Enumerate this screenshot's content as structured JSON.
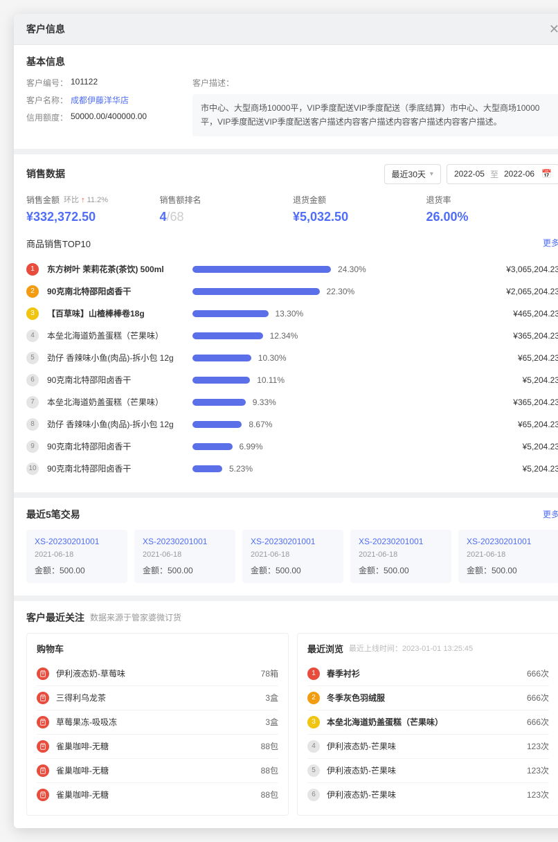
{
  "modal": {
    "title": "客户信息"
  },
  "basic": {
    "title": "基本信息",
    "id_label": "客户编号：",
    "id": "101122",
    "name_label": "客户名称：",
    "name": "成都伊藤洋华店",
    "credit_label": "信用额度：",
    "credit": "50000.00/400000.00",
    "desc_label": "客户描述：",
    "desc": "市中心、大型商场10000平，VIP季度配送VIP季度配送（季底结算）市中心、大型商场10000平，VIP季度配送VIP季度配送客户描述内容客户描述内容客户描述内容客户描述。"
  },
  "sales": {
    "title": "销售数据",
    "period_label": "最近30天",
    "date_start": "2022-05",
    "date_sep": "至",
    "date_end": "2022-06",
    "metrics": [
      {
        "label": "销售金额",
        "delta_label": "环比",
        "delta_arrow": "↑",
        "delta_val": "11.2%",
        "value": "¥332,372.50",
        "has_delta": true
      },
      {
        "label": "销售额排名",
        "value_num": "4",
        "value_denom": "/68",
        "is_rank": true
      },
      {
        "label": "退货金额",
        "value": "¥5,032.50"
      },
      {
        "label": "退货率",
        "value": "26.00%"
      }
    ],
    "top10_title": "商品销售TOP10",
    "more": "更多",
    "bar_color": "#5b6fe8",
    "rank_colors": [
      "#e74c3c",
      "#f39c12",
      "#f1c40f"
    ],
    "max_pct": 24.3,
    "items": [
      {
        "rank": 1,
        "name": "东方树叶 茉莉花茶(茶饮) 500ml",
        "pct": 24.3,
        "pct_label": "24.30%",
        "amount": "¥3,065,204.23",
        "bold": true
      },
      {
        "rank": 2,
        "name": "90克南北特邵阳卤香干",
        "pct": 22.3,
        "pct_label": "22.30%",
        "amount": "¥2,065,204.23",
        "bold": true
      },
      {
        "rank": 3,
        "name": "【百草味】山楂棒棒卷18g",
        "pct": 13.3,
        "pct_label": "13.30%",
        "amount": "¥465,204.23",
        "bold": true
      },
      {
        "rank": 4,
        "name": "本垒北海道奶盖蛋糕（芒果味）",
        "pct": 12.34,
        "pct_label": "12.34%",
        "amount": "¥365,204.23"
      },
      {
        "rank": 5,
        "name": "劲仔 香辣味小鱼(肉品)-拆小包 12g",
        "pct": 10.3,
        "pct_label": "10.30%",
        "amount": "¥65,204.23"
      },
      {
        "rank": 6,
        "name": "90克南北特邵阳卤香干",
        "pct": 10.11,
        "pct_label": "10.11%",
        "amount": "¥5,204.23"
      },
      {
        "rank": 7,
        "name": "本垒北海道奶盖蛋糕（芒果味）",
        "pct": 9.33,
        "pct_label": "9.33%",
        "amount": "¥365,204.23"
      },
      {
        "rank": 8,
        "name": "劲仔 香辣味小鱼(肉品)-拆小包 12g",
        "pct": 8.67,
        "pct_label": "8.67%",
        "amount": "¥65,204.23"
      },
      {
        "rank": 9,
        "name": "90克南北特邵阳卤香干",
        "pct": 6.99,
        "pct_label": "6.99%",
        "amount": "¥5,204.23"
      },
      {
        "rank": 10,
        "name": "90克南北特邵阳卤香干",
        "pct": 5.23,
        "pct_label": "5.23%",
        "amount": "¥5,204.23"
      }
    ]
  },
  "tx": {
    "title": "最近5笔交易",
    "more": "更多",
    "amt_label": "金额：",
    "items": [
      {
        "id": "XS-20230201001",
        "date": "2021-06-18",
        "amount": "500.00"
      },
      {
        "id": "XS-20230201001",
        "date": "2021-06-18",
        "amount": "500.00"
      },
      {
        "id": "XS-20230201001",
        "date": "2021-06-18",
        "amount": "500.00"
      },
      {
        "id": "XS-20230201001",
        "date": "2021-06-18",
        "amount": "500.00"
      },
      {
        "id": "XS-20230201001",
        "date": "2021-06-18",
        "amount": "500.00"
      }
    ]
  },
  "attn": {
    "title": "客户最近关注",
    "sub": "数据来源于管家婆微订货",
    "cart": {
      "title": "购物车",
      "icon_color": "#e74c3c",
      "items": [
        {
          "name": "伊利液态奶-草莓味",
          "qty": "78箱"
        },
        {
          "name": "三得利乌龙茶",
          "qty": "3盒"
        },
        {
          "name": "草莓果冻-吸吸冻",
          "qty": "3盒"
        },
        {
          "name": "雀巢咖啡-无糖",
          "qty": "88包"
        },
        {
          "name": "雀巢咖啡-无糖",
          "qty": "88包"
        },
        {
          "name": "雀巢咖啡-无糖",
          "qty": "88包"
        }
      ]
    },
    "browse": {
      "title": "最近浏览",
      "sub_label": "最近上线时间：",
      "sub_time": "2023-01-01 13:25:45",
      "rank_colors": [
        "#e74c3c",
        "#f39c12",
        "#f1c40f"
      ],
      "items": [
        {
          "rank": 1,
          "name": "春季衬衫",
          "qty": "666次"
        },
        {
          "rank": 2,
          "name": "冬季灰色羽绒服",
          "qty": "666次"
        },
        {
          "rank": 3,
          "name": "本垒北海道奶盖蛋糕（芒果味）",
          "qty": "666次"
        },
        {
          "rank": 4,
          "name": "伊利液态奶-芒果味",
          "qty": "123次"
        },
        {
          "rank": 5,
          "name": "伊利液态奶-芒果味",
          "qty": "123次"
        },
        {
          "rank": 6,
          "name": "伊利液态奶-芒果味",
          "qty": "123次"
        }
      ]
    }
  }
}
